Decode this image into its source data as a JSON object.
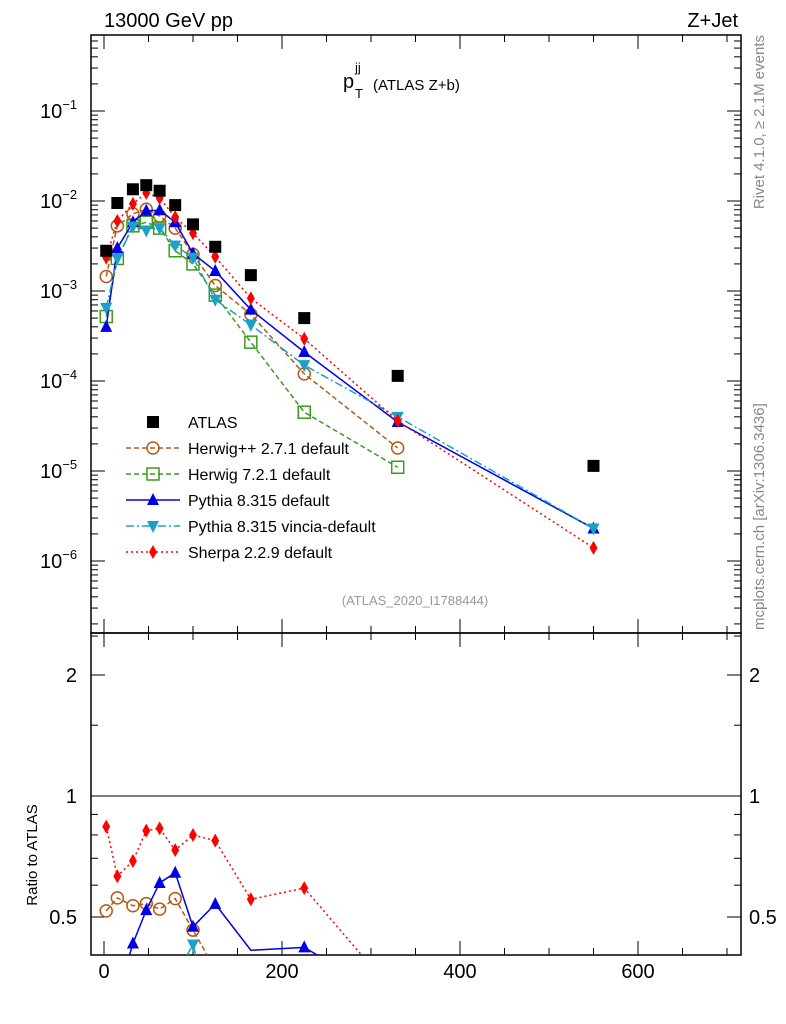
{
  "header": {
    "left": "13000 GeV pp",
    "right": "Z+Jet"
  },
  "side": {
    "rivet": "Rivet 4.1.0, ≥ 2.1M events",
    "mcplots": "mcplots.cern.ch [arXiv:1306.3436]"
  },
  "chart_data": {
    "type": "line",
    "title_main": "p",
    "title_sub": "T",
    "title_sup": "jj",
    "title_rest": "(ATLAS Z+b)",
    "analysis": "(ATLAS_2020_I1788444)",
    "xlabel": "",
    "ylabel_ratio": "Ratio to ATLAS",
    "xlim": [
      -15,
      716
    ],
    "ylim": [
      1.6e-07,
      0.7
    ],
    "ratio_ylim": [
      0.4,
      2.5
    ],
    "yscale": "log",
    "ratio_yscale": "log",
    "x_ticks": [
      "0",
      "200",
      "400",
      "600"
    ],
    "y_ticks": [
      {
        "base": "10",
        "exp": "−1"
      },
      {
        "base": "10",
        "exp": "−2"
      },
      {
        "base": "10",
        "exp": "−3"
      },
      {
        "base": "10",
        "exp": "−4"
      },
      {
        "base": "10",
        "exp": "−5"
      },
      {
        "base": "10",
        "exp": "−6"
      }
    ],
    "ratio_ticks": [
      "2",
      "1",
      "0.5"
    ],
    "x": [
      2.5,
      15,
      32.5,
      47.5,
      62.5,
      80,
      100,
      125,
      165,
      225,
      330,
      550
    ],
    "series": [
      {
        "name": "ATLAS",
        "color": "#000000",
        "marker": "square",
        "values": [
          0.0028,
          0.0095,
          0.0135,
          0.015,
          0.013,
          0.009,
          0.0055,
          0.0031,
          0.0015,
          0.0005,
          0.000114,
          1.14e-05
        ]
      },
      {
        "name": "Herwig++ 2.7.1 default",
        "color": "#b35a16",
        "marker": "circle",
        "dash": "5,3",
        "values": [
          0.00145,
          0.0053,
          0.0072,
          0.0081,
          0.0068,
          0.005,
          0.00255,
          0.00115,
          0.00055,
          0.00012,
          1.8e-05,
          null
        ]
      },
      {
        "name": "Herwig 7.2.1 default",
        "color": "#3c9a1e",
        "marker": "opensquare",
        "dash": "5,3",
        "values": [
          0.00052,
          0.0023,
          0.0053,
          0.0058,
          0.005,
          0.0028,
          0.002,
          0.0009,
          0.00027,
          4.5e-05,
          1.1e-05,
          null
        ]
      },
      {
        "name": "Pythia 8.315 default",
        "color": "#0000e6",
        "marker": "triangle",
        "dash": "",
        "values": [
          0.0004,
          0.003,
          0.0058,
          0.0078,
          0.0079,
          0.0058,
          0.0026,
          0.00167,
          0.00062,
          0.00021,
          3.5e-05,
          2.3e-06
        ]
      },
      {
        "name": "Pythia 8.315 vincia-default",
        "color": "#1ca0c8",
        "marker": "invtriangle",
        "dash": "8,3,2,3",
        "values": [
          0.00065,
          0.0023,
          0.0052,
          0.0047,
          0.005,
          0.0032,
          0.00235,
          0.0008,
          0.00042,
          0.00015,
          4e-05,
          2.3e-06
        ]
      },
      {
        "name": "Sherpa 2.2.9 default",
        "color": "#ff0000",
        "marker": "diamond",
        "dash": "2,3",
        "values": [
          0.00235,
          0.006,
          0.0093,
          0.0123,
          0.0108,
          0.0066,
          0.0044,
          0.0024,
          0.00083,
          0.000295,
          3.6e-05,
          1.4e-06
        ]
      }
    ]
  }
}
